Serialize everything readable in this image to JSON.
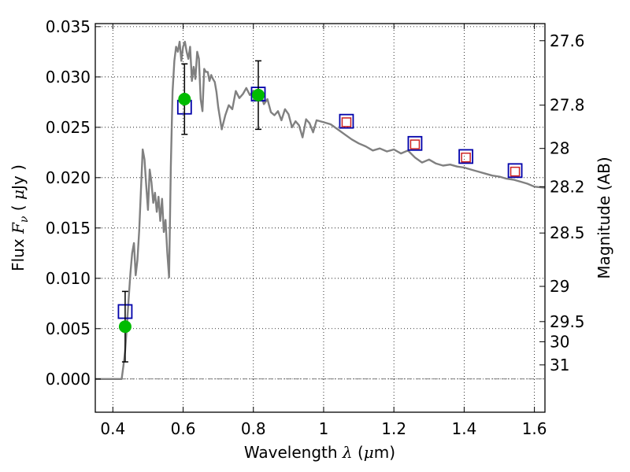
{
  "chart_data": {
    "type": "scatter",
    "xlabel": "Wavelength",
    "xlabel_symbol": "λ",
    "xlabel_unit_open": " (",
    "xlabel_unit_mu": "μ",
    "xlabel_unit_rest": "m)",
    "ylabel": "Flux",
    "ylabel_symbol": "F",
    "ylabel_symbol_sub": "ν",
    "ylabel_unit_open": " ( ",
    "ylabel_unit_mu": "μ",
    "ylabel_unit_rest": "Jy )",
    "y2label": "Magnitude (AB)",
    "xlim": [
      0.35,
      1.63
    ],
    "ylim": [
      -0.0033,
      0.0353
    ],
    "grid": true,
    "x_ticks": [
      0.4,
      0.6,
      0.8,
      1.0,
      1.2,
      1.4,
      1.6
    ],
    "x_tick_labels": [
      "0.4",
      "0.6",
      "0.8",
      "1",
      "1.2",
      "1.4",
      "1.6"
    ],
    "y_ticks": [
      0.0,
      0.005,
      0.01,
      0.015,
      0.02,
      0.025,
      0.03,
      0.035
    ],
    "y_tick_labels": [
      "0.000",
      "0.005",
      "0.010",
      "0.015",
      "0.020",
      "0.025",
      "0.030",
      "0.035"
    ],
    "mag_ticks": [
      {
        "label": "27.6",
        "flux": 0.0336
      },
      {
        "label": "27.8",
        "flux": 0.0272
      },
      {
        "label": "28",
        "flux": 0.0229
      },
      {
        "label": "28.2",
        "flux": 0.0191
      },
      {
        "label": "28.5",
        "flux": 0.0145
      },
      {
        "label": "29",
        "flux": 0.0092
      },
      {
        "label": "29.5",
        "flux": 0.0057
      },
      {
        "label": "30",
        "flux": 0.0037
      },
      {
        "label": "31",
        "flux": 0.0014
      }
    ],
    "series": [
      {
        "kind": "sed_model",
        "color": "#808080",
        "x": [
          0.35,
          0.38,
          0.4,
          0.41,
          0.42,
          0.425,
          0.43,
          0.435,
          0.44,
          0.445,
          0.45,
          0.455,
          0.46,
          0.465,
          0.47,
          0.475,
          0.48,
          0.485,
          0.49,
          0.495,
          0.5,
          0.505,
          0.51,
          0.515,
          0.52,
          0.525,
          0.53,
          0.535,
          0.54,
          0.545,
          0.55,
          0.555,
          0.56,
          0.565,
          0.57,
          0.575,
          0.58,
          0.585,
          0.59,
          0.595,
          0.6,
          0.605,
          0.61,
          0.615,
          0.62,
          0.625,
          0.63,
          0.635,
          0.64,
          0.645,
          0.65,
          0.655,
          0.66,
          0.665,
          0.67,
          0.675,
          0.68,
          0.685,
          0.69,
          0.695,
          0.7,
          0.71,
          0.72,
          0.73,
          0.74,
          0.75,
          0.76,
          0.77,
          0.78,
          0.79,
          0.8,
          0.81,
          0.82,
          0.83,
          0.84,
          0.85,
          0.86,
          0.87,
          0.88,
          0.89,
          0.9,
          0.91,
          0.92,
          0.93,
          0.94,
          0.95,
          0.96,
          0.97,
          0.98,
          1.0,
          1.02,
          1.04,
          1.06,
          1.08,
          1.1,
          1.12,
          1.14,
          1.16,
          1.18,
          1.2,
          1.22,
          1.24,
          1.26,
          1.28,
          1.3,
          1.32,
          1.34,
          1.36,
          1.38,
          1.4,
          1.42,
          1.44,
          1.46,
          1.48,
          1.5,
          1.52,
          1.54,
          1.56,
          1.58,
          1.6,
          1.63
        ],
        "y": [
          0.0,
          0.0,
          0.0,
          0.0,
          0.0,
          0.0,
          0.0013,
          0.0028,
          0.0052,
          0.008,
          0.0105,
          0.0125,
          0.0135,
          0.0103,
          0.0118,
          0.0148,
          0.0188,
          0.0228,
          0.0218,
          0.0192,
          0.0168,
          0.0208,
          0.0195,
          0.0175,
          0.0185,
          0.0166,
          0.0181,
          0.0157,
          0.0179,
          0.0146,
          0.0158,
          0.0126,
          0.0101,
          0.021,
          0.0285,
          0.0316,
          0.033,
          0.0325,
          0.0335,
          0.0316,
          0.033,
          0.0335,
          0.0325,
          0.0318,
          0.033,
          0.0296,
          0.031,
          0.0298,
          0.0325,
          0.0318,
          0.0278,
          0.0266,
          0.0308,
          0.0305,
          0.0305,
          0.0296,
          0.0302,
          0.0298,
          0.0295,
          0.0285,
          0.027,
          0.0248,
          0.0262,
          0.0272,
          0.0268,
          0.0286,
          0.0279,
          0.0283,
          0.0289,
          0.0282,
          0.0286,
          0.028,
          0.0285,
          0.0273,
          0.0278,
          0.0265,
          0.0262,
          0.0266,
          0.0257,
          0.0268,
          0.0263,
          0.025,
          0.0256,
          0.0252,
          0.024,
          0.0258,
          0.0254,
          0.0245,
          0.0257,
          0.0255,
          0.0253,
          0.0248,
          0.0243,
          0.0238,
          0.0234,
          0.0231,
          0.0227,
          0.0229,
          0.0226,
          0.0228,
          0.0224,
          0.0227,
          0.022,
          0.0215,
          0.0218,
          0.0214,
          0.0212,
          0.0213,
          0.0211,
          0.021,
          0.0208,
          0.0206,
          0.0204,
          0.0202,
          0.0201,
          0.0199,
          0.0198,
          0.0196,
          0.0194,
          0.0191,
          0.019
        ]
      },
      {
        "kind": "observed_flux",
        "marker": "circle",
        "color": "#00bb00",
        "x": [
          0.435,
          0.604,
          0.814
        ],
        "y": [
          0.0052,
          0.0278,
          0.0282
        ],
        "yerr": [
          0.0035,
          0.0035,
          0.0034
        ]
      },
      {
        "kind": "photometry_box",
        "marker": "square",
        "color": "#0000aa",
        "x": [
          0.435,
          0.604,
          0.814,
          1.065,
          1.26,
          1.405,
          1.545
        ],
        "y": [
          0.0067,
          0.027,
          0.0283,
          0.0256,
          0.0234,
          0.0221,
          0.0207
        ]
      },
      {
        "kind": "model_box",
        "marker": "square",
        "color": "#cc2222",
        "x": [
          1.065,
          1.26,
          1.405,
          1.545
        ],
        "y": [
          0.0255,
          0.0233,
          0.022,
          0.0206
        ]
      }
    ]
  }
}
